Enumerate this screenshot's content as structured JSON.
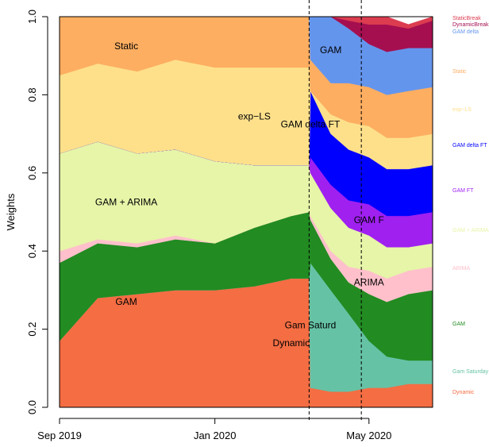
{
  "chart_data": {
    "type": "area",
    "ylabel": "Weights",
    "ylim": [
      0,
      1
    ],
    "y_ticks": [
      "0.0",
      "0.2",
      "0.4",
      "0.6",
      "0.8",
      "1.0"
    ],
    "x_ticks": [
      {
        "label": "Sep 2019",
        "date": "2019-09-01"
      },
      {
        "label": "Jan 2020",
        "date": "2020-01-01"
      },
      {
        "label": "May 2020",
        "date": "2020-05-01"
      }
    ],
    "xlim": [
      "2019-09-01",
      "2020-06-20"
    ],
    "vlines": [
      "2020-03-15",
      "2020-04-25"
    ],
    "series": [
      {
        "name": "Dynamic",
        "color": "#F46D43",
        "label": "Dynamic"
      },
      {
        "name": "Gam Saturday",
        "color": "#66C2A5",
        "label": "Gam Saturd"
      },
      {
        "name": "GAM",
        "color": "#228B22",
        "label": "GAM"
      },
      {
        "name": "ARIMA",
        "color": "#FFC0CB",
        "label": "ARIMA"
      },
      {
        "name": "GAM + ARIMA",
        "color": "#E6F5A8",
        "label": "GAM + ARIMA"
      },
      {
        "name": "GAM FT",
        "color": "#A020F0",
        "label": "GAM F"
      },
      {
        "name": "GAM delta FT",
        "color": "#0000FF",
        "label": "GAM delta FT"
      },
      {
        "name": "exp−LS",
        "color": "#FEE08B",
        "label": "exp−LS"
      },
      {
        "name": "Static",
        "color": "#FDAE61",
        "label": "Static"
      },
      {
        "name": "GAM delta",
        "color": "#6495ED",
        "label": "GAM"
      },
      {
        "name": "DynamicBreak",
        "color": "#A50F50",
        "label": ""
      },
      {
        "name": "StaticBreak",
        "color": "#DC3C50",
        "label": ""
      }
    ],
    "dates": [
      "2019-09-01",
      "2019-10-01",
      "2019-11-01",
      "2019-12-01",
      "2020-01-01",
      "2020-02-01",
      "2020-03-01",
      "2020-03-15",
      "2020-03-16",
      "2020-04-01",
      "2020-04-15",
      "2020-05-01",
      "2020-05-15",
      "2020-06-01",
      "2020-06-20"
    ],
    "stack": {
      "Dynamic": [
        0.17,
        0.28,
        0.29,
        0.3,
        0.3,
        0.31,
        0.33,
        0.33,
        0.05,
        0.04,
        0.04,
        0.05,
        0.05,
        0.06,
        0.06
      ],
      "Gam Saturday": [
        0.0,
        0.0,
        0.0,
        0.0,
        0.0,
        0.0,
        0.0,
        0.0,
        0.32,
        0.26,
        0.2,
        0.12,
        0.08,
        0.06,
        0.06
      ],
      "GAM": [
        0.2,
        0.14,
        0.12,
        0.13,
        0.12,
        0.15,
        0.16,
        0.17,
        0.11,
        0.08,
        0.08,
        0.12,
        0.14,
        0.17,
        0.18
      ],
      "ARIMA": [
        0.03,
        0.01,
        0.01,
        0.01,
        0.0,
        0.0,
        0.0,
        0.0,
        0.01,
        0.02,
        0.04,
        0.06,
        0.06,
        0.06,
        0.06
      ],
      "GAM + ARIMA": [
        0.25,
        0.25,
        0.23,
        0.22,
        0.21,
        0.16,
        0.13,
        0.12,
        0.11,
        0.11,
        0.1,
        0.09,
        0.08,
        0.06,
        0.06
      ],
      "GAM FT": [
        0.0,
        0.0,
        0.0,
        0.0,
        0.0,
        0.0,
        0.0,
        0.0,
        0.04,
        0.06,
        0.07,
        0.08,
        0.08,
        0.08,
        0.08
      ],
      "GAM delta FT": [
        0.0,
        0.0,
        0.0,
        0.0,
        0.0,
        0.0,
        0.0,
        0.0,
        0.17,
        0.13,
        0.13,
        0.12,
        0.12,
        0.12,
        0.12
      ],
      "exp−LS": [
        0.2,
        0.2,
        0.21,
        0.23,
        0.24,
        0.25,
        0.25,
        0.25,
        0.0,
        0.05,
        0.07,
        0.08,
        0.08,
        0.08,
        0.08
      ],
      "Static": [
        0.15,
        0.12,
        0.14,
        0.11,
        0.13,
        0.13,
        0.13,
        0.13,
        0.08,
        0.08,
        0.1,
        0.1,
        0.11,
        0.12,
        0.12
      ],
      "GAM delta": [
        0.0,
        0.0,
        0.0,
        0.0,
        0.0,
        0.0,
        0.0,
        0.0,
        0.11,
        0.17,
        0.14,
        0.11,
        0.11,
        0.11,
        0.1
      ],
      "DynamicBreak": [
        0.0,
        0.0,
        0.0,
        0.0,
        0.0,
        0.0,
        0.0,
        0.0,
        0.0,
        0.0,
        0.02,
        0.05,
        0.07,
        0.05,
        0.07
      ],
      "StaticBreak": [
        0.0,
        0.0,
        0.0,
        0.0,
        0.0,
        0.0,
        0.0,
        0.0,
        0.0,
        0.0,
        0.01,
        0.02,
        0.02,
        0.01,
        0.01
      ]
    },
    "legend": [
      {
        "text": "StaticBreak",
        "color": "#DC3C50"
      },
      {
        "text": "DynamicBreak",
        "color": "#A50F50"
      },
      {
        "text": "GAM delta",
        "color": "#6495ED"
      },
      {
        "text": "Static",
        "color": "#FDAE61"
      },
      {
        "text": "exp−LS",
        "color": "#FEE08B"
      },
      {
        "text": "GAM delta FT",
        "color": "#0000FF"
      },
      {
        "text": "GAM FT",
        "color": "#A020F0"
      },
      {
        "text": "GAM + ARIMA",
        "color": "#E6F5A8"
      },
      {
        "text": "ARIMA",
        "color": "#FFC0CB"
      },
      {
        "text": "GAM",
        "color": "#228B22"
      },
      {
        "text": "Gam Saturday",
        "color": "#66C2A5"
      },
      {
        "text": "Dynamic",
        "color": "#F46D43"
      }
    ],
    "legend_placement": "right",
    "grid": false
  }
}
